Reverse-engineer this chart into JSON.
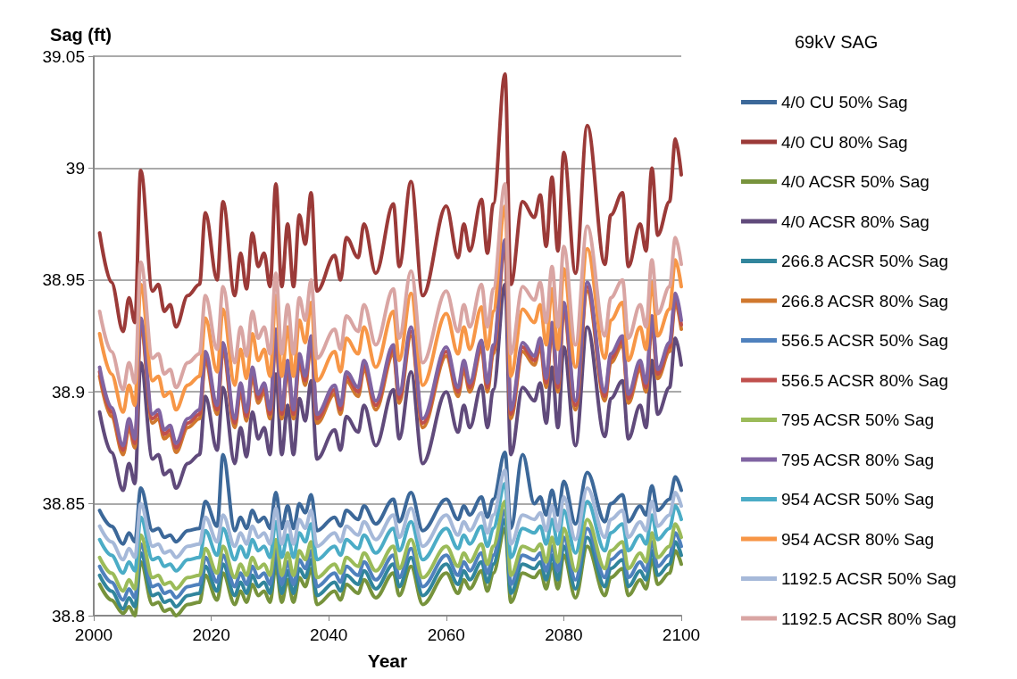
{
  "chart_data": {
    "type": "line",
    "title": "69kV SAG",
    "xlabel": "Year",
    "ylabel": "Sag (ft)",
    "x": [
      2001,
      2003,
      2005,
      2006,
      2007,
      2008,
      2010,
      2011,
      2012,
      2013,
      2014,
      2016,
      2018,
      2019,
      2021,
      2022,
      2024,
      2025,
      2026,
      2027,
      2028,
      2029,
      2030,
      2031,
      2032,
      2033,
      2034,
      2035,
      2036,
      2037,
      2038,
      2041,
      2042,
      2043,
      2045,
      2046,
      2048,
      2051,
      2052,
      2054,
      2056,
      2060,
      2062,
      2063,
      2064,
      2066,
      2067,
      2068,
      2070,
      2071,
      2073,
      2075,
      2076,
      2077,
      2078,
      2079,
      2080,
      2082,
      2084,
      2087,
      2088,
      2090,
      2091,
      2093,
      2094,
      2095,
      2096,
      2098,
      2099,
      2100
    ],
    "xlim": [
      2000,
      2100
    ],
    "xticks": [
      2000,
      2020,
      2040,
      2060,
      2080,
      2100
    ],
    "ylim": [
      38.8,
      39.05
    ],
    "yticks": [
      38.8,
      38.85,
      38.9,
      38.95,
      39,
      39.05
    ],
    "grid": "y",
    "legend": "right",
    "marker": "none",
    "line_style": "solid",
    "series": [
      {
        "name": "4/0 CU 50% Sag",
        "color": "#3c6899",
        "values": [
          38.847,
          38.84,
          38.832,
          38.837,
          38.833,
          38.857,
          38.838,
          38.839,
          38.835,
          38.836,
          38.833,
          38.838,
          38.839,
          38.851,
          38.84,
          38.872,
          38.838,
          38.844,
          38.839,
          38.847,
          38.842,
          38.844,
          38.839,
          38.855,
          38.839,
          38.849,
          38.839,
          38.85,
          38.846,
          38.854,
          38.838,
          38.844,
          38.84,
          38.847,
          38.843,
          38.849,
          38.841,
          38.852,
          38.842,
          38.855,
          38.838,
          38.852,
          38.843,
          38.849,
          38.845,
          38.853,
          38.844,
          38.852,
          38.873,
          38.839,
          38.872,
          38.85,
          38.853,
          38.845,
          38.856,
          38.845,
          38.86,
          38.841,
          38.864,
          38.842,
          38.85,
          38.854,
          38.842,
          38.849,
          38.845,
          38.858,
          38.847,
          38.852,
          38.862,
          38.856
        ]
      },
      {
        "name": "4/0 CU 80% Sag",
        "color": "#9b3a38",
        "values": [
          38.971,
          38.949,
          38.927,
          38.942,
          38.931,
          38.999,
          38.945,
          38.948,
          38.936,
          38.939,
          38.929,
          38.943,
          38.948,
          38.98,
          38.95,
          38.985,
          38.943,
          38.962,
          38.946,
          38.971,
          38.956,
          38.962,
          38.947,
          38.993,
          38.947,
          38.975,
          38.947,
          38.979,
          38.966,
          38.989,
          38.945,
          38.961,
          38.95,
          38.969,
          38.96,
          38.975,
          38.953,
          38.984,
          38.956,
          38.994,
          38.943,
          38.983,
          38.96,
          38.975,
          38.963,
          38.986,
          38.962,
          38.984,
          39.042,
          38.948,
          38.985,
          38.978,
          38.988,
          38.965,
          38.996,
          38.963,
          39.007,
          38.953,
          39.019,
          38.957,
          38.979,
          38.989,
          38.956,
          38.975,
          38.963,
          39.0,
          38.97,
          38.985,
          39.013,
          38.997
        ]
      },
      {
        "name": "4/0 ACSR 50% Sag",
        "color": "#77933c",
        "values": [
          38.814,
          38.807,
          38.801,
          38.804,
          38.8,
          38.824,
          38.805,
          38.806,
          38.802,
          38.803,
          38.8,
          38.805,
          38.806,
          38.818,
          38.807,
          38.819,
          38.805,
          38.811,
          38.806,
          38.814,
          38.809,
          38.811,
          38.806,
          38.822,
          38.806,
          38.816,
          38.806,
          38.817,
          38.813,
          38.821,
          38.805,
          38.811,
          38.807,
          38.814,
          38.81,
          38.816,
          38.808,
          38.819,
          38.809,
          38.822,
          38.805,
          38.819,
          38.81,
          38.816,
          38.812,
          38.82,
          38.811,
          38.819,
          38.839,
          38.806,
          38.819,
          38.817,
          38.82,
          38.812,
          38.823,
          38.812,
          38.827,
          38.808,
          38.831,
          38.809,
          38.817,
          38.821,
          38.809,
          38.816,
          38.812,
          38.825,
          38.814,
          38.819,
          38.829,
          38.823
        ]
      },
      {
        "name": "4/0 ACSR 80% Sag",
        "color": "#604a7b",
        "values": [
          38.891,
          38.873,
          38.856,
          38.868,
          38.859,
          38.913,
          38.87,
          38.872,
          38.863,
          38.865,
          38.857,
          38.868,
          38.872,
          38.898,
          38.874,
          38.902,
          38.868,
          38.884,
          38.871,
          38.891,
          38.879,
          38.884,
          38.872,
          38.908,
          38.872,
          38.894,
          38.872,
          38.897,
          38.887,
          38.905,
          38.87,
          38.883,
          38.874,
          38.889,
          38.882,
          38.894,
          38.876,
          38.901,
          38.879,
          38.909,
          38.868,
          38.9,
          38.882,
          38.894,
          38.884,
          38.903,
          38.884,
          38.901,
          38.948,
          38.872,
          38.902,
          38.896,
          38.904,
          38.886,
          38.911,
          38.884,
          38.92,
          38.876,
          38.929,
          38.88,
          38.897,
          38.905,
          38.879,
          38.894,
          38.884,
          38.914,
          38.89,
          38.902,
          38.924,
          38.912
        ]
      },
      {
        "name": "266.8 ACSR 50% Sag",
        "color": "#31859c",
        "values": [
          38.818,
          38.811,
          38.803,
          38.808,
          38.804,
          38.828,
          38.809,
          38.81,
          38.806,
          38.807,
          38.804,
          38.809,
          38.81,
          38.822,
          38.811,
          38.823,
          38.809,
          38.815,
          38.81,
          38.818,
          38.813,
          38.815,
          38.81,
          38.826,
          38.81,
          38.82,
          38.81,
          38.821,
          38.817,
          38.825,
          38.809,
          38.815,
          38.811,
          38.818,
          38.814,
          38.82,
          38.812,
          38.823,
          38.813,
          38.826,
          38.809,
          38.823,
          38.814,
          38.82,
          38.816,
          38.824,
          38.815,
          38.823,
          38.843,
          38.81,
          38.823,
          38.821,
          38.824,
          38.816,
          38.827,
          38.816,
          38.831,
          38.812,
          38.835,
          38.813,
          38.821,
          38.825,
          38.813,
          38.82,
          38.816,
          38.829,
          38.818,
          38.823,
          38.833,
          38.827
        ]
      },
      {
        "name": "266.8 ACSR 80% Sag",
        "color": "#d0782e",
        "values": [
          38.907,
          38.889,
          38.872,
          38.884,
          38.875,
          38.929,
          38.886,
          38.888,
          38.879,
          38.881,
          38.873,
          38.884,
          38.888,
          38.914,
          38.89,
          38.918,
          38.884,
          38.9,
          38.887,
          38.907,
          38.895,
          38.9,
          38.888,
          38.924,
          38.888,
          38.91,
          38.888,
          38.913,
          38.903,
          38.921,
          38.886,
          38.899,
          38.89,
          38.905,
          38.898,
          38.91,
          38.892,
          38.917,
          38.895,
          38.925,
          38.884,
          38.916,
          38.898,
          38.91,
          38.9,
          38.919,
          38.9,
          38.917,
          38.964,
          38.888,
          38.918,
          38.912,
          38.92,
          38.902,
          38.927,
          38.9,
          38.936,
          38.892,
          38.945,
          38.896,
          38.913,
          38.921,
          38.895,
          38.91,
          38.9,
          38.93,
          38.906,
          38.918,
          38.94,
          38.928
        ]
      },
      {
        "name": "556.5 ACSR 50% Sag",
        "color": "#4f81bd",
        "values": [
          38.822,
          38.815,
          38.807,
          38.812,
          38.808,
          38.832,
          38.813,
          38.814,
          38.81,
          38.811,
          38.808,
          38.813,
          38.814,
          38.826,
          38.815,
          38.827,
          38.813,
          38.819,
          38.814,
          38.822,
          38.817,
          38.819,
          38.814,
          38.83,
          38.814,
          38.824,
          38.814,
          38.825,
          38.821,
          38.829,
          38.813,
          38.819,
          38.815,
          38.822,
          38.818,
          38.824,
          38.816,
          38.827,
          38.817,
          38.83,
          38.813,
          38.827,
          38.818,
          38.824,
          38.82,
          38.828,
          38.819,
          38.827,
          38.847,
          38.814,
          38.827,
          38.825,
          38.828,
          38.82,
          38.831,
          38.82,
          38.835,
          38.816,
          38.839,
          38.817,
          38.825,
          38.829,
          38.817,
          38.824,
          38.82,
          38.833,
          38.822,
          38.827,
          38.837,
          38.831
        ]
      },
      {
        "name": "556.5 ACSR 80% Sag",
        "color": "#c0504d",
        "values": [
          38.909,
          38.891,
          38.874,
          38.886,
          38.877,
          38.931,
          38.888,
          38.89,
          38.881,
          38.883,
          38.875,
          38.886,
          38.89,
          38.916,
          38.892,
          38.92,
          38.886,
          38.902,
          38.889,
          38.909,
          38.897,
          38.902,
          38.89,
          38.926,
          38.89,
          38.912,
          38.89,
          38.915,
          38.905,
          38.923,
          38.888,
          38.901,
          38.892,
          38.907,
          38.9,
          38.912,
          38.894,
          38.919,
          38.897,
          38.927,
          38.886,
          38.918,
          38.9,
          38.912,
          38.902,
          38.921,
          38.902,
          38.919,
          38.966,
          38.89,
          38.92,
          38.914,
          38.922,
          38.904,
          38.929,
          38.902,
          38.938,
          38.894,
          38.947,
          38.898,
          38.915,
          38.923,
          38.897,
          38.912,
          38.902,
          38.932,
          38.908,
          38.92,
          38.942,
          38.93
        ]
      },
      {
        "name": "795 ACSR 50% Sag",
        "color": "#9bbb59",
        "values": [
          38.826,
          38.819,
          38.811,
          38.816,
          38.812,
          38.836,
          38.817,
          38.818,
          38.814,
          38.815,
          38.812,
          38.817,
          38.818,
          38.83,
          38.819,
          38.831,
          38.817,
          38.823,
          38.818,
          38.826,
          38.821,
          38.823,
          38.818,
          38.834,
          38.818,
          38.828,
          38.818,
          38.829,
          38.825,
          38.833,
          38.817,
          38.823,
          38.819,
          38.826,
          38.822,
          38.828,
          38.82,
          38.831,
          38.821,
          38.834,
          38.817,
          38.831,
          38.822,
          38.828,
          38.824,
          38.832,
          38.823,
          38.831,
          38.851,
          38.818,
          38.831,
          38.829,
          38.832,
          38.824,
          38.835,
          38.824,
          38.839,
          38.82,
          38.843,
          38.821,
          38.829,
          38.833,
          38.821,
          38.828,
          38.824,
          38.837,
          38.826,
          38.831,
          38.841,
          38.835
        ]
      },
      {
        "name": "795 ACSR 80% Sag",
        "color": "#8064a2",
        "values": [
          38.911,
          38.893,
          38.876,
          38.888,
          38.879,
          38.933,
          38.89,
          38.892,
          38.883,
          38.885,
          38.877,
          38.888,
          38.892,
          38.918,
          38.894,
          38.922,
          38.888,
          38.904,
          38.891,
          38.911,
          38.899,
          38.904,
          38.892,
          38.928,
          38.892,
          38.914,
          38.892,
          38.917,
          38.907,
          38.925,
          38.89,
          38.903,
          38.894,
          38.909,
          38.902,
          38.914,
          38.896,
          38.921,
          38.899,
          38.929,
          38.888,
          38.92,
          38.902,
          38.914,
          38.904,
          38.923,
          38.904,
          38.921,
          38.968,
          38.892,
          38.922,
          38.916,
          38.924,
          38.906,
          38.931,
          38.904,
          38.94,
          38.896,
          38.949,
          38.9,
          38.917,
          38.925,
          38.899,
          38.914,
          38.904,
          38.934,
          38.91,
          38.922,
          38.944,
          38.932
        ]
      },
      {
        "name": "954 ACSR 50% Sag",
        "color": "#4bacc6",
        "values": [
          38.834,
          38.827,
          38.819,
          38.824,
          38.82,
          38.844,
          38.825,
          38.826,
          38.822,
          38.823,
          38.82,
          38.825,
          38.826,
          38.838,
          38.827,
          38.839,
          38.825,
          38.831,
          38.826,
          38.834,
          38.829,
          38.831,
          38.826,
          38.842,
          38.826,
          38.836,
          38.826,
          38.837,
          38.833,
          38.841,
          38.825,
          38.831,
          38.827,
          38.834,
          38.83,
          38.836,
          38.828,
          38.839,
          38.829,
          38.842,
          38.825,
          38.839,
          38.83,
          38.836,
          38.832,
          38.84,
          38.831,
          38.839,
          38.859,
          38.826,
          38.839,
          38.837,
          38.84,
          38.832,
          38.843,
          38.832,
          38.847,
          38.828,
          38.851,
          38.829,
          38.837,
          38.841,
          38.829,
          38.836,
          38.832,
          38.845,
          38.834,
          38.839,
          38.849,
          38.843
        ]
      },
      {
        "name": "954 ACSR 80% Sag",
        "color": "#f79646",
        "values": [
          38.926,
          38.908,
          38.891,
          38.903,
          38.894,
          38.948,
          38.905,
          38.907,
          38.898,
          38.9,
          38.892,
          38.903,
          38.907,
          38.933,
          38.909,
          38.937,
          38.903,
          38.919,
          38.906,
          38.926,
          38.914,
          38.919,
          38.907,
          38.943,
          38.907,
          38.929,
          38.907,
          38.932,
          38.922,
          38.94,
          38.905,
          38.918,
          38.909,
          38.924,
          38.917,
          38.929,
          38.911,
          38.936,
          38.914,
          38.944,
          38.903,
          38.935,
          38.917,
          38.929,
          38.919,
          38.938,
          38.919,
          38.936,
          38.983,
          38.907,
          38.937,
          38.931,
          38.939,
          38.921,
          38.946,
          38.919,
          38.955,
          38.911,
          38.964,
          38.915,
          38.932,
          38.94,
          38.914,
          38.929,
          38.919,
          38.949,
          38.925,
          38.937,
          38.959,
          38.947
        ]
      },
      {
        "name": "1192.5 ACSR 50% Sag",
        "color": "#a6b9d9",
        "values": [
          38.84,
          38.833,
          38.825,
          38.83,
          38.826,
          38.85,
          38.831,
          38.832,
          38.828,
          38.829,
          38.826,
          38.831,
          38.832,
          38.844,
          38.833,
          38.845,
          38.831,
          38.837,
          38.832,
          38.84,
          38.835,
          38.837,
          38.832,
          38.848,
          38.832,
          38.842,
          38.832,
          38.843,
          38.839,
          38.847,
          38.831,
          38.837,
          38.833,
          38.84,
          38.836,
          38.842,
          38.834,
          38.845,
          38.835,
          38.848,
          38.831,
          38.845,
          38.836,
          38.842,
          38.838,
          38.846,
          38.837,
          38.845,
          38.865,
          38.832,
          38.845,
          38.843,
          38.846,
          38.838,
          38.849,
          38.838,
          38.853,
          38.834,
          38.857,
          38.835,
          38.843,
          38.847,
          38.835,
          38.842,
          38.838,
          38.851,
          38.84,
          38.845,
          38.855,
          38.849
        ]
      },
      {
        "name": "1192.5 ACSR 80% Sag",
        "color": "#d9a5a3",
        "values": [
          38.936,
          38.918,
          38.901,
          38.913,
          38.904,
          38.958,
          38.915,
          38.917,
          38.908,
          38.91,
          38.902,
          38.913,
          38.917,
          38.943,
          38.919,
          38.947,
          38.913,
          38.929,
          38.916,
          38.936,
          38.924,
          38.929,
          38.917,
          38.953,
          38.917,
          38.939,
          38.917,
          38.942,
          38.932,
          38.95,
          38.915,
          38.928,
          38.919,
          38.934,
          38.927,
          38.939,
          38.921,
          38.946,
          38.924,
          38.954,
          38.913,
          38.945,
          38.927,
          38.939,
          38.929,
          38.948,
          38.929,
          38.946,
          38.993,
          38.917,
          38.947,
          38.941,
          38.949,
          38.931,
          38.956,
          38.929,
          38.965,
          38.921,
          38.974,
          38.925,
          38.942,
          38.95,
          38.924,
          38.939,
          38.929,
          38.959,
          38.935,
          38.947,
          38.969,
          38.957
        ]
      }
    ]
  }
}
